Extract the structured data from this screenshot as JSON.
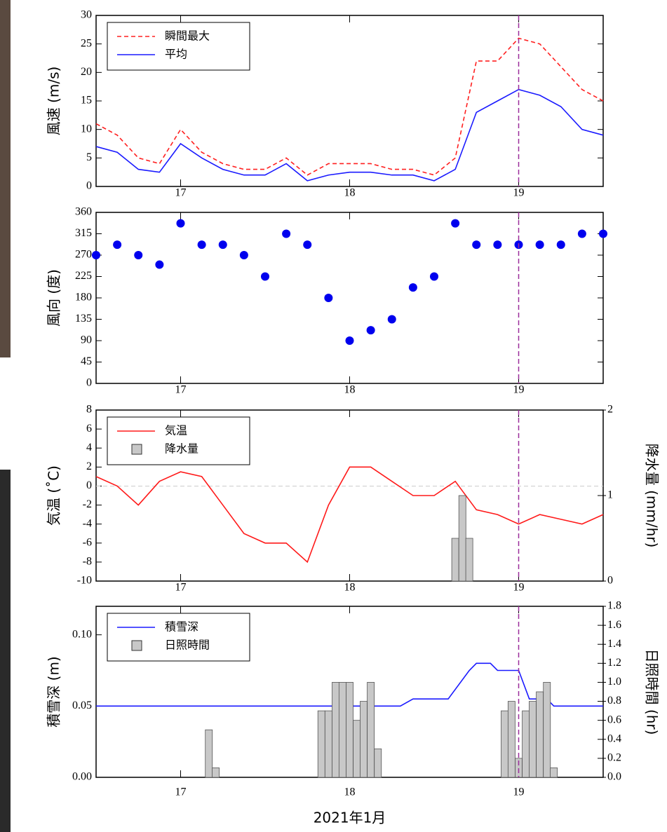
{
  "chart_data": [
    {
      "type": "line",
      "ylabel": "風速 (m/s)",
      "xlim": [
        16.5,
        19.5
      ],
      "xticks": [
        17,
        18,
        19
      ],
      "ylim": [
        0,
        30
      ],
      "yticks": [
        0,
        5,
        10,
        15,
        20,
        25,
        30
      ],
      "highlight_x": 19,
      "x": [
        16.5,
        16.625,
        16.75,
        16.875,
        17,
        17.125,
        17.25,
        17.375,
        17.5,
        17.625,
        17.75,
        17.875,
        18,
        18.125,
        18.25,
        18.375,
        18.5,
        18.625,
        18.75,
        18.875,
        19,
        19.125,
        19.25,
        19.375,
        19.5
      ],
      "series": [
        {
          "name": "瞬間最大",
          "color": "#ff2020",
          "style": "dashed",
          "values": [
            11,
            9,
            5,
            4,
            10,
            6,
            4,
            3,
            3,
            5,
            2,
            4,
            4,
            4,
            3,
            3,
            2,
            5,
            22,
            22,
            26,
            25,
            21,
            17,
            15
          ]
        },
        {
          "name": "平均",
          "color": "#1a1aff",
          "style": "solid",
          "values": [
            7,
            6,
            3,
            2.5,
            7.5,
            5,
            3,
            2,
            2,
            4,
            1,
            2,
            2.5,
            2.5,
            2,
            2,
            1,
            3,
            13,
            15,
            17,
            16,
            14,
            10,
            9
          ]
        }
      ]
    },
    {
      "type": "scatter",
      "ylabel": "風向 (度)",
      "xlim": [
        16.5,
        19.5
      ],
      "xticks": [
        17,
        18,
        19
      ],
      "ylim": [
        0,
        360
      ],
      "yticks": [
        0,
        45,
        90,
        135,
        180,
        225,
        270,
        315,
        360
      ],
      "highlight_x": 19,
      "x": [
        16.5,
        16.625,
        16.75,
        16.875,
        17,
        17.125,
        17.25,
        17.375,
        17.5,
        17.625,
        17.75,
        17.875,
        18,
        18.125,
        18.25,
        18.375,
        18.5,
        18.625,
        18.75,
        18.875,
        19,
        19.125,
        19.25,
        19.375,
        19.5
      ],
      "series": [
        {
          "color": "#0000ee",
          "style": "dots",
          "values": [
            270,
            292,
            270,
            250,
            337,
            292,
            292,
            270,
            225,
            315,
            292,
            180,
            90,
            112,
            135,
            202,
            225,
            337,
            292,
            292,
            292,
            292,
            292,
            315,
            315
          ]
        }
      ]
    },
    {
      "type": "line",
      "ylabel": "気温 (˚C)",
      "y2label": "降水量 (mm/hr)",
      "xlim": [
        16.5,
        19.5
      ],
      "xticks": [
        17,
        18,
        19
      ],
      "ylim": [
        -10,
        8
      ],
      "yticks": [
        -10,
        -8,
        -6,
        -4,
        -2,
        0,
        2,
        4,
        6,
        8
      ],
      "y2lim": [
        0,
        2
      ],
      "y2ticks": [
        0,
        1,
        2
      ],
      "zero_line": true,
      "highlight_x": 19,
      "x": [
        16.5,
        16.625,
        16.75,
        16.875,
        17,
        17.125,
        17.25,
        17.375,
        17.5,
        17.625,
        17.75,
        17.875,
        18,
        18.125,
        18.25,
        18.375,
        18.5,
        18.625,
        18.75,
        18.875,
        19,
        19.125,
        19.25,
        19.375,
        19.5
      ],
      "series": [
        {
          "name": "気温",
          "color": "#ff1a1a",
          "style": "solid",
          "values": [
            1,
            0,
            -2,
            0.5,
            1.5,
            1,
            -2,
            -5,
            -6,
            -6,
            -8,
            -2,
            2,
            2,
            0.5,
            -1,
            -1,
            0.5,
            -2.5,
            -3,
            -4,
            -3,
            -3.5,
            -4,
            -3
          ]
        },
        {
          "name": "降水量",
          "color": "#c8c8c8",
          "style": "bars",
          "axis": "y2",
          "x": [
            18.625,
            18.667,
            18.708
          ],
          "values": [
            0.5,
            1,
            0.5
          ]
        }
      ]
    },
    {
      "type": "line",
      "ylabel": "積雪深 (m)",
      "y2label": "日照時間 (hr)",
      "xlabel": "2021年1月",
      "xlim": [
        16.5,
        19.5
      ],
      "xticks": [
        17,
        18,
        19
      ],
      "ylim": [
        0,
        0.12
      ],
      "yticks": [
        {
          "value": 0,
          "label": "0.00"
        },
        {
          "value": 0.05,
          "label": "0.05"
        },
        {
          "value": 0.1,
          "label": "0.10"
        }
      ],
      "y2lim": [
        0,
        1.8
      ],
      "y2ticks": [
        {
          "value": 0,
          "label": "0.0"
        },
        0.2,
        0.4,
        0.6,
        0.8,
        {
          "value": 1,
          "label": "1.0"
        },
        1.2,
        1.4,
        1.6,
        1.8
      ],
      "highlight_x": 19,
      "series": [
        {
          "name": "積雪深",
          "color": "#1a1aff",
          "style": "solid",
          "x": [
            16.5,
            18.3,
            18.375,
            18.583,
            18.708,
            18.75,
            18.833,
            18.875,
            19,
            19.063,
            19.167,
            19.208,
            19.5
          ],
          "values": [
            0.05,
            0.05,
            0.055,
            0.055,
            0.075,
            0.08,
            0.08,
            0.075,
            0.075,
            0.055,
            0.055,
            0.05,
            0.05
          ]
        },
        {
          "name": "日照時間",
          "color": "#c8c8c8",
          "style": "bars",
          "axis": "y2",
          "x": [
            17.167,
            17.208,
            17.833,
            17.875,
            17.917,
            17.958,
            18,
            18.042,
            18.083,
            18.125,
            18.167,
            18.917,
            18.958,
            19,
            19.042,
            19.083,
            19.125,
            19.167,
            19.208
          ],
          "values": [
            0.5,
            0.1,
            0.7,
            0.7,
            1,
            1,
            1,
            0.6,
            0.8,
            1,
            0.3,
            0.7,
            0.8,
            0.2,
            0.7,
            0.8,
            0.9,
            1,
            0.1
          ]
        }
      ]
    }
  ]
}
